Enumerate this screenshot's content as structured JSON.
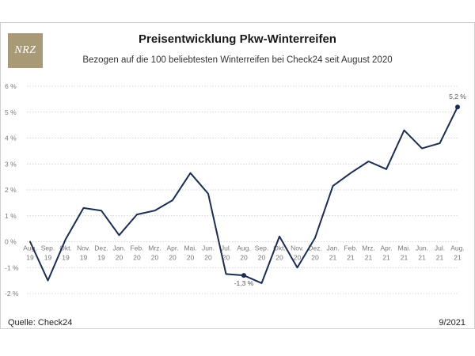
{
  "branding": {
    "logo_text": "NRZ"
  },
  "header": {
    "title": "Preisentwicklung Pkw-Winterreifen",
    "subtitle": "Bezogen auf die 100 beliebtesten Winterreifen bei Check24 seit August 2020"
  },
  "footer": {
    "source": "Quelle: Check24",
    "date": "9/2021"
  },
  "colors": {
    "line": "#1b2d52",
    "grid": "#c8c8c8",
    "logo_bg": "#a89a76"
  },
  "chart_data": {
    "type": "line",
    "title": "Preisentwicklung Pkw-Winterreifen",
    "subtitle": "Bezogen auf die 100 beliebtesten Winterreifen bei Check24 seit August 2020",
    "categories": [
      [
        "Aug.",
        "19"
      ],
      [
        "Sep.",
        "19"
      ],
      [
        "Okt.",
        "19"
      ],
      [
        "Nov.",
        "19"
      ],
      [
        "Dez.",
        "19"
      ],
      [
        "Jan.",
        "20"
      ],
      [
        "Feb.",
        "20"
      ],
      [
        "Mrz.",
        "20"
      ],
      [
        "Apr.",
        "20"
      ],
      [
        "Mai.",
        "20"
      ],
      [
        "Jun.",
        "20"
      ],
      [
        "Jul.",
        "20"
      ],
      [
        "Aug.",
        "20"
      ],
      [
        "Sep.",
        "20"
      ],
      [
        "Okt.",
        "20"
      ],
      [
        "Nov.",
        "20"
      ],
      [
        "Dez.",
        "20"
      ],
      [
        "Jan.",
        "21"
      ],
      [
        "Feb.",
        "21"
      ],
      [
        "Mrz.",
        "21"
      ],
      [
        "Apr.",
        "21"
      ],
      [
        "Mai.",
        "21"
      ],
      [
        "Jun.",
        "21"
      ],
      [
        "Jul.",
        "21"
      ],
      [
        "Aug.",
        "21"
      ]
    ],
    "values": [
      0.0,
      -1.5,
      0.1,
      1.3,
      1.2,
      0.25,
      1.05,
      1.2,
      1.6,
      2.65,
      1.85,
      -1.25,
      -1.3,
      -1.6,
      0.2,
      -1.0,
      0.15,
      2.15,
      2.65,
      3.1,
      2.8,
      4.3,
      3.6,
      3.8,
      5.2
    ],
    "ylim": [
      -2,
      6
    ],
    "yticks": [
      -2,
      -1,
      0,
      1,
      2,
      3,
      4,
      5,
      6
    ],
    "ytick_labels": [
      "-2 %",
      "-1 %",
      "0 %",
      "1 %",
      "2 %",
      "3 %",
      "4 %",
      "5 %",
      "6 %"
    ],
    "grid": true,
    "annotations": [
      {
        "index": 12,
        "label": "-1,3 %"
      },
      {
        "index": 24,
        "label": "5,2 %"
      }
    ],
    "xlabel": "",
    "ylabel": ""
  }
}
